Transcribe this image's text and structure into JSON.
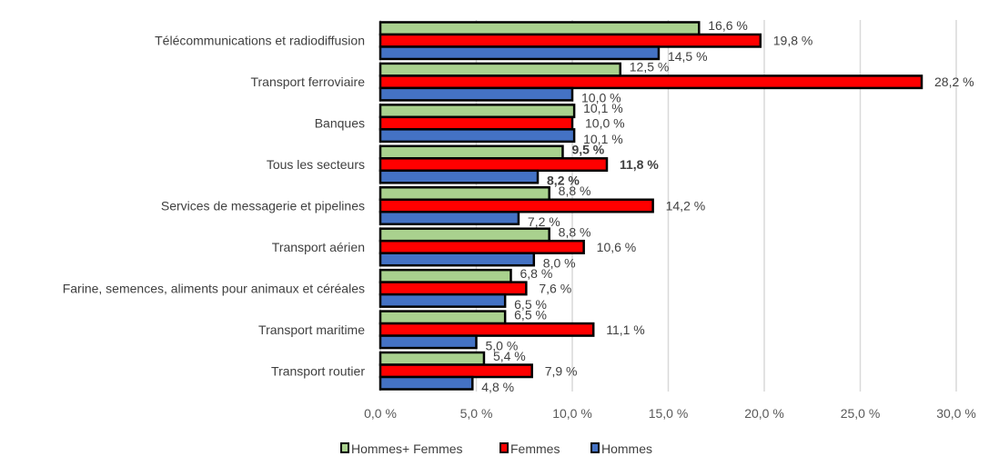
{
  "chart_data": {
    "type": "bar",
    "orientation": "horizontal",
    "categories": [
      "Télécommunications et radiodiffusion",
      "Transport ferroviaire",
      "Banques",
      "Tous les secteurs",
      "Services de messagerie et pipelines",
      "Transport aérien",
      "Farine, semences, aliments pour animaux et céréales",
      "Transport maritime",
      "Transport routier"
    ],
    "series": [
      {
        "name": "Hommes+ Femmes",
        "color": "#A9D18E",
        "values": [
          16.6,
          12.5,
          10.1,
          9.5,
          8.8,
          8.8,
          6.8,
          6.5,
          5.4
        ]
      },
      {
        "name": "Femmes",
        "color": "#FF0000",
        "values": [
          19.8,
          28.2,
          10.0,
          11.8,
          14.2,
          10.6,
          7.6,
          11.1,
          7.9
        ]
      },
      {
        "name": "Hommes",
        "color": "#4472C4",
        "values": [
          14.5,
          10.0,
          10.1,
          8.2,
          7.2,
          8.0,
          6.5,
          5.0,
          4.8
        ]
      }
    ],
    "data_labels": [
      [
        "16,6 %",
        "12,5 %",
        "10,1 %",
        "9,5 %",
        "8,8 %",
        "8,8 %",
        "6,8 %",
        "6,5 %",
        "5,4 %"
      ],
      [
        "19,8 %",
        "28,2 %",
        "10,0 %",
        "11,8 %",
        "14,2 %",
        "10,6 %",
        "7,6 %",
        "11,1 %",
        "7,9 %"
      ],
      [
        "14,5 %",
        "10,0 %",
        "10,1 %",
        "8,2 %",
        "7,2 %",
        "8,0 %",
        "6,5 %",
        "5,0 %",
        "4,8 %"
      ]
    ],
    "bold_category": "Tous les secteurs",
    "xlim": [
      0,
      30
    ],
    "xticks": [
      0,
      5,
      10,
      15,
      20,
      25,
      30
    ],
    "xtick_labels": [
      "0,0 %",
      "5,0 %",
      "10,0 %",
      "15,0 %",
      "20,0 %",
      "25,0 %",
      "30,0 %"
    ],
    "grid": "vertical",
    "legend": "bottom",
    "title": "",
    "xlabel": "",
    "ylabel": ""
  }
}
